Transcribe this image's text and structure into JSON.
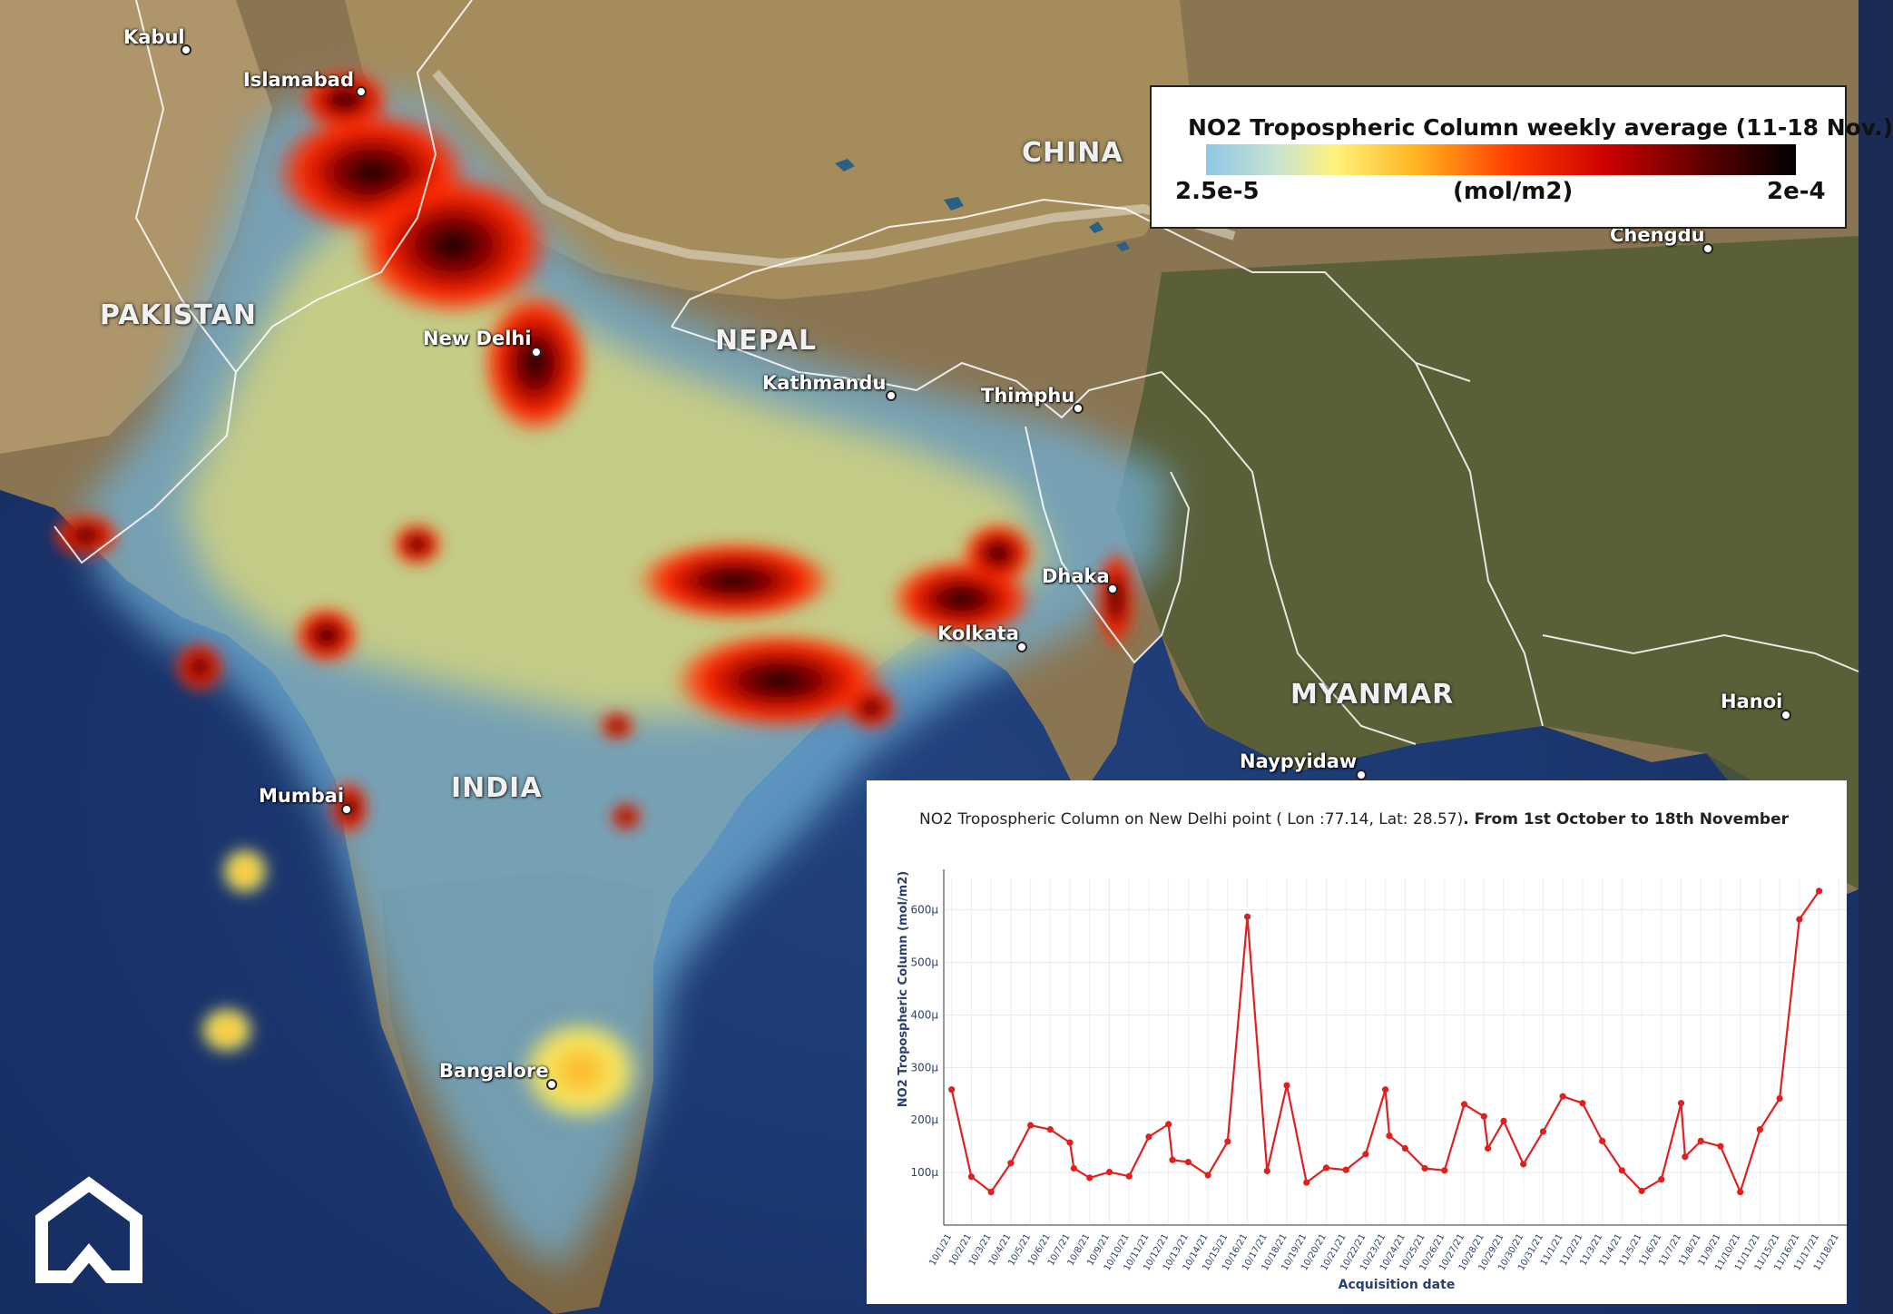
{
  "map": {
    "countries": [
      "PAKISTAN",
      "NEPAL",
      "CHINA",
      "INDIA",
      "MYANMAR"
    ],
    "cities": [
      "Kabul",
      "Islamabad",
      "New Delhi",
      "Kathmandu",
      "Thimphu",
      "Dhaka",
      "Kolkata",
      "Mumbai",
      "Bangalore",
      "Chengdu",
      "Naypyidaw",
      "Hanoi"
    ],
    "colors": {
      "ocean": "#1c3a78",
      "land": "#8a7552",
      "low": "#8fc7e6",
      "mid": "#fff27a",
      "high": "#ff3a00",
      "max": "#000000"
    }
  },
  "legend": {
    "title": "NO2 Tropospheric Column weekly average (11-18 Nov.)",
    "min": "2.5e-5",
    "unit": "(mol/m2)",
    "max": "2e-4"
  },
  "chart": {
    "title_regular": "NO2 Tropospheric Column on New Delhi point ( Lon :77.14, Lat: 28.57)",
    "title_bold": ". From 1st October to 18th November"
  },
  "chart_data": {
    "type": "line",
    "xlabel": "Acquisition date",
    "ylabel": "NO2 Tropospheric Column (mol/m2)",
    "yticks": [
      "100μ",
      "200μ",
      "300μ",
      "400μ",
      "500μ",
      "600μ"
    ],
    "ylim": [
      0,
      660
    ],
    "x_tick_labels": [
      "10/1/21",
      "10/2/21",
      "10/3/21",
      "10/4/21",
      "10/5/21",
      "10/6/21",
      "10/7/21",
      "10/8/21",
      "10/9/21",
      "10/10/21",
      "10/11/21",
      "10/12/21",
      "10/13/21",
      "10/14/21",
      "10/15/21",
      "10/16/21",
      "10/17/21",
      "10/18/21",
      "10/19/21",
      "10/20/21",
      "10/21/21",
      "10/22/21",
      "10/23/21",
      "10/24/21",
      "10/25/21",
      "10/26/21",
      "10/27/21",
      "10/28/21",
      "10/29/21",
      "10/30/21",
      "10/31/21",
      "11/1/21",
      "11/2/21",
      "11/3/21",
      "11/4/21",
      "11/5/21",
      "11/6/21",
      "11/7/21",
      "11/8/21",
      "11/9/21",
      "11/10/21",
      "11/11/21",
      "11/15/21",
      "11/16/21",
      "11/17/21",
      "11/18/21"
    ],
    "series": [
      {
        "color": "#e02020",
        "points": [
          [
            1,
            258
          ],
          [
            2,
            92
          ],
          [
            3,
            63
          ],
          [
            4,
            118
          ],
          [
            5,
            190
          ],
          [
            6,
            182
          ],
          [
            7,
            157
          ],
          [
            7.2,
            108
          ],
          [
            8,
            90
          ],
          [
            9,
            101
          ],
          [
            10,
            93
          ],
          [
            11,
            168
          ],
          [
            12,
            192
          ],
          [
            12.2,
            124
          ],
          [
            13,
            120
          ],
          [
            14,
            95
          ],
          [
            15,
            159
          ],
          [
            16,
            587
          ],
          [
            17,
            103
          ],
          [
            18,
            266
          ],
          [
            19,
            81
          ],
          [
            20,
            109
          ],
          [
            21,
            105
          ],
          [
            22,
            135
          ],
          [
            23,
            258
          ],
          [
            23.2,
            170
          ],
          [
            24,
            146
          ],
          [
            25,
            108
          ],
          [
            26,
            104
          ],
          [
            27,
            230
          ],
          [
            28,
            207
          ],
          [
            28.2,
            146
          ],
          [
            29,
            198
          ],
          [
            30,
            116
          ],
          [
            31,
            178
          ],
          [
            32,
            245
          ],
          [
            33,
            232
          ],
          [
            34,
            160
          ],
          [
            35,
            104
          ],
          [
            36,
            65
          ],
          [
            37,
            87
          ],
          [
            38,
            232
          ],
          [
            38.2,
            130
          ],
          [
            39,
            160
          ],
          [
            40,
            150
          ],
          [
            41,
            63
          ],
          [
            42,
            182
          ],
          [
            43,
            241
          ],
          [
            44,
            582
          ],
          [
            45,
            636
          ]
        ]
      }
    ],
    "grid": true
  }
}
